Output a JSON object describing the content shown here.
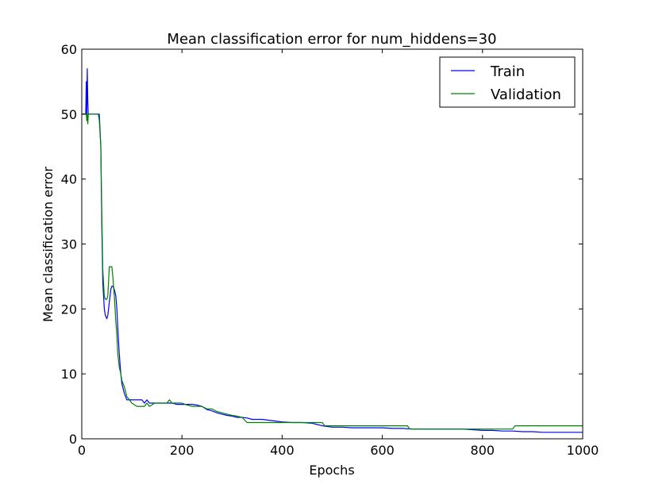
{
  "chart_data": {
    "type": "line",
    "title": "Mean classification error for num_hiddens=30",
    "xlabel": "Epochs",
    "ylabel": "Mean classification error",
    "xlim": [
      0,
      1000
    ],
    "ylim": [
      0,
      60
    ],
    "xticks": [
      0,
      200,
      400,
      600,
      800,
      1000
    ],
    "yticks": [
      0,
      10,
      20,
      30,
      40,
      50,
      60
    ],
    "xtick_labels": [
      "0",
      "200",
      "400",
      "600",
      "800",
      "1000"
    ],
    "ytick_labels": [
      "0",
      "10",
      "20",
      "30",
      "40",
      "50",
      "60"
    ],
    "grid": false,
    "legend_position": "top-right",
    "series": [
      {
        "name": "Train",
        "color": "#0000ff",
        "x": [
          0,
          5,
          8,
          9,
          10,
          11,
          12,
          13,
          15,
          20,
          25,
          30,
          33,
          35,
          38,
          40,
          42,
          45,
          47,
          50,
          52,
          55,
          58,
          60,
          62,
          65,
          68,
          70,
          72,
          75,
          78,
          80,
          85,
          90,
          95,
          100,
          110,
          115,
          120,
          125,
          130,
          135,
          140,
          145,
          150,
          160,
          170,
          180,
          190,
          200,
          210,
          220,
          230,
          240,
          250,
          260,
          270,
          280,
          290,
          300,
          310,
          320,
          330,
          340,
          350,
          360,
          380,
          400,
          420,
          440,
          460,
          470,
          480,
          500,
          520,
          540,
          560,
          580,
          600,
          620,
          640,
          660,
          680,
          700,
          720,
          740,
          760,
          780,
          800,
          820,
          840,
          860,
          880,
          900,
          920,
          940,
          960,
          980,
          1000
        ],
        "y": [
          50,
          50,
          50,
          55,
          50,
          57,
          52,
          50,
          50,
          50,
          50,
          50,
          50,
          50,
          45,
          33,
          24,
          20,
          19,
          18.5,
          19,
          21,
          23,
          23.5,
          23.5,
          23,
          22,
          20,
          17,
          13,
          10,
          8.5,
          7,
          6,
          6,
          6,
          6,
          6,
          6,
          5.5,
          6,
          5.5,
          5.5,
          5.5,
          5.5,
          5.5,
          5.5,
          5.5,
          5.3,
          5.3,
          5.3,
          5.3,
          5.2,
          5,
          4.5,
          4.3,
          4,
          3.8,
          3.6,
          3.5,
          3.3,
          3.3,
          3.2,
          3,
          3,
          3,
          2.8,
          2.6,
          2.5,
          2.5,
          2.4,
          2.2,
          2,
          1.8,
          1.8,
          1.7,
          1.7,
          1.7,
          1.7,
          1.6,
          1.6,
          1.5,
          1.5,
          1.5,
          1.5,
          1.5,
          1.5,
          1.4,
          1.3,
          1.3,
          1.2,
          1.2,
          1.1,
          1.1,
          1,
          1,
          1,
          1,
          1
        ]
      },
      {
        "name": "Validation",
        "color": "#008000",
        "x": [
          0,
          5,
          8,
          9,
          10,
          11,
          12,
          13,
          15,
          20,
          25,
          30,
          33,
          35,
          38,
          40,
          42,
          45,
          47,
          50,
          52,
          55,
          58,
          60,
          62,
          65,
          68,
          70,
          72,
          75,
          78,
          80,
          85,
          90,
          95,
          100,
          110,
          115,
          120,
          125,
          130,
          135,
          140,
          145,
          150,
          160,
          170,
          175,
          180,
          185,
          190,
          200,
          210,
          220,
          230,
          240,
          250,
          260,
          270,
          280,
          290,
          300,
          310,
          320,
          330,
          340,
          350,
          360,
          380,
          400,
          420,
          440,
          460,
          470,
          480,
          485,
          490,
          500,
          520,
          540,
          560,
          580,
          600,
          620,
          640,
          650,
          655,
          660,
          680,
          700,
          720,
          740,
          760,
          780,
          800,
          820,
          840,
          860,
          865,
          880,
          900,
          920,
          940,
          960,
          980,
          1000
        ],
        "y": [
          50,
          50,
          50,
          50,
          49,
          50,
          48.5,
          50,
          50,
          50,
          50,
          50,
          50,
          49,
          45,
          35,
          26,
          22,
          21.5,
          21.5,
          22,
          26.5,
          26.5,
          26.5,
          25,
          22,
          18,
          16,
          13,
          11,
          10,
          9,
          8,
          6.5,
          6,
          5.5,
          5,
          5,
          5,
          5,
          5.5,
          5,
          5.2,
          5.5,
          5.5,
          5.5,
          5.5,
          6,
          5.5,
          5.5,
          5.5,
          5.5,
          5.2,
          5,
          5,
          5,
          4.6,
          4.6,
          4.2,
          4,
          3.8,
          3.6,
          3.5,
          3.3,
          2.5,
          2.5,
          2.5,
          2.5,
          2.5,
          2.5,
          2.5,
          2.5,
          2.5,
          2.5,
          2.5,
          2,
          2,
          2,
          2,
          2,
          2,
          2,
          2,
          2,
          2,
          2,
          1.5,
          1.5,
          1.5,
          1.5,
          1.5,
          1.5,
          1.5,
          1.5,
          1.5,
          1.5,
          1.5,
          1.5,
          2,
          2,
          2,
          2,
          2,
          2,
          2,
          2
        ]
      }
    ]
  }
}
